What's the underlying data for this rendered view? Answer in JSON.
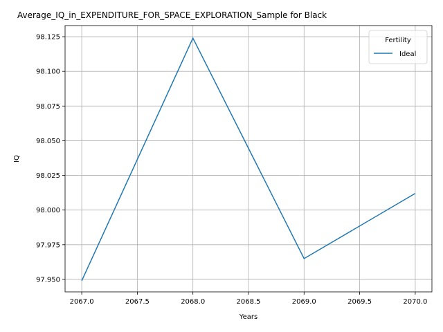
{
  "chart_data": {
    "type": "line",
    "title": "Average_IQ_in_EXPENDITURE_FOR_SPACE_EXPLORATION_Sample for Black",
    "xlabel": "Years",
    "ylabel": "IQ",
    "xlim": [
      2066.85,
      2070.15
    ],
    "ylim": [
      97.941,
      98.133
    ],
    "x_ticks": [
      2067.0,
      2067.5,
      2068.0,
      2068.5,
      2069.0,
      2069.5,
      2070.0
    ],
    "x_tick_labels": [
      "2067.0",
      "2067.5",
      "2068.0",
      "2068.5",
      "2069.0",
      "2069.5",
      "2070.0"
    ],
    "y_ticks": [
      97.95,
      97.975,
      98.0,
      98.025,
      98.05,
      98.075,
      98.1,
      98.125
    ],
    "y_tick_labels": [
      "97.950",
      "97.975",
      "98.000",
      "98.025",
      "98.050",
      "98.075",
      "98.100",
      "98.125"
    ],
    "grid": true,
    "legend": {
      "title": "Fertility",
      "placement": "top-right"
    },
    "series": [
      {
        "name": "Ideal",
        "color": "#1f77b4",
        "x": [
          2067,
          2068,
          2069,
          2070
        ],
        "y": [
          97.949,
          98.124,
          97.965,
          98.012
        ]
      }
    ]
  }
}
